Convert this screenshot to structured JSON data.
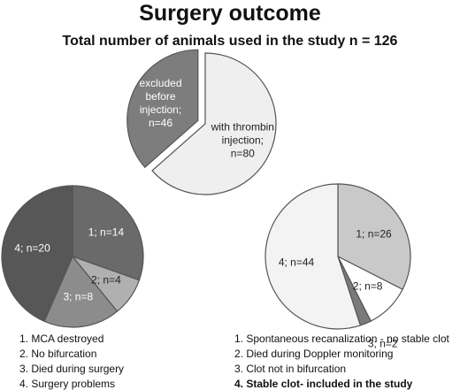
{
  "title": "Surgery outcome",
  "subtitle": "Total number of animals used in the study n = 126",
  "chart_data": [
    {
      "type": "pie",
      "values": [
        46,
        80
      ],
      "value_labels": [
        "excluded before injection; n=46",
        "with thrombin injection; n=80"
      ],
      "colors": [
        "#7d7d7d",
        "#efefef"
      ]
    },
    {
      "type": "pie",
      "values": [
        14,
        4,
        8,
        20
      ],
      "value_labels": [
        "1; n=14",
        "2; n=4",
        "3; n=8",
        "4; n=20"
      ],
      "categories": [
        "1. MCA destroyed",
        "2. No bifurcation",
        "3. Died during surgery",
        "4. Surgery problems"
      ],
      "colors": [
        "#6a6a6a",
        "#b0b0b0",
        "#8c8c8c",
        "#575757"
      ]
    },
    {
      "type": "pie",
      "values": [
        26,
        8,
        2,
        44
      ],
      "value_labels": [
        "1; n=26",
        "2; n=8",
        "3; n=2",
        "4; n=44"
      ],
      "categories": [
        "1. Spontaneous recanalization - no stable clot",
        "2. Died during Doppler monitoring",
        "3. Clot not in bifurcation",
        "4. Stable clot- included in the study"
      ],
      "colors": [
        "#c9c9c9",
        "#ffffff",
        "#7a7a7a",
        "#f3f3f3"
      ]
    }
  ]
}
